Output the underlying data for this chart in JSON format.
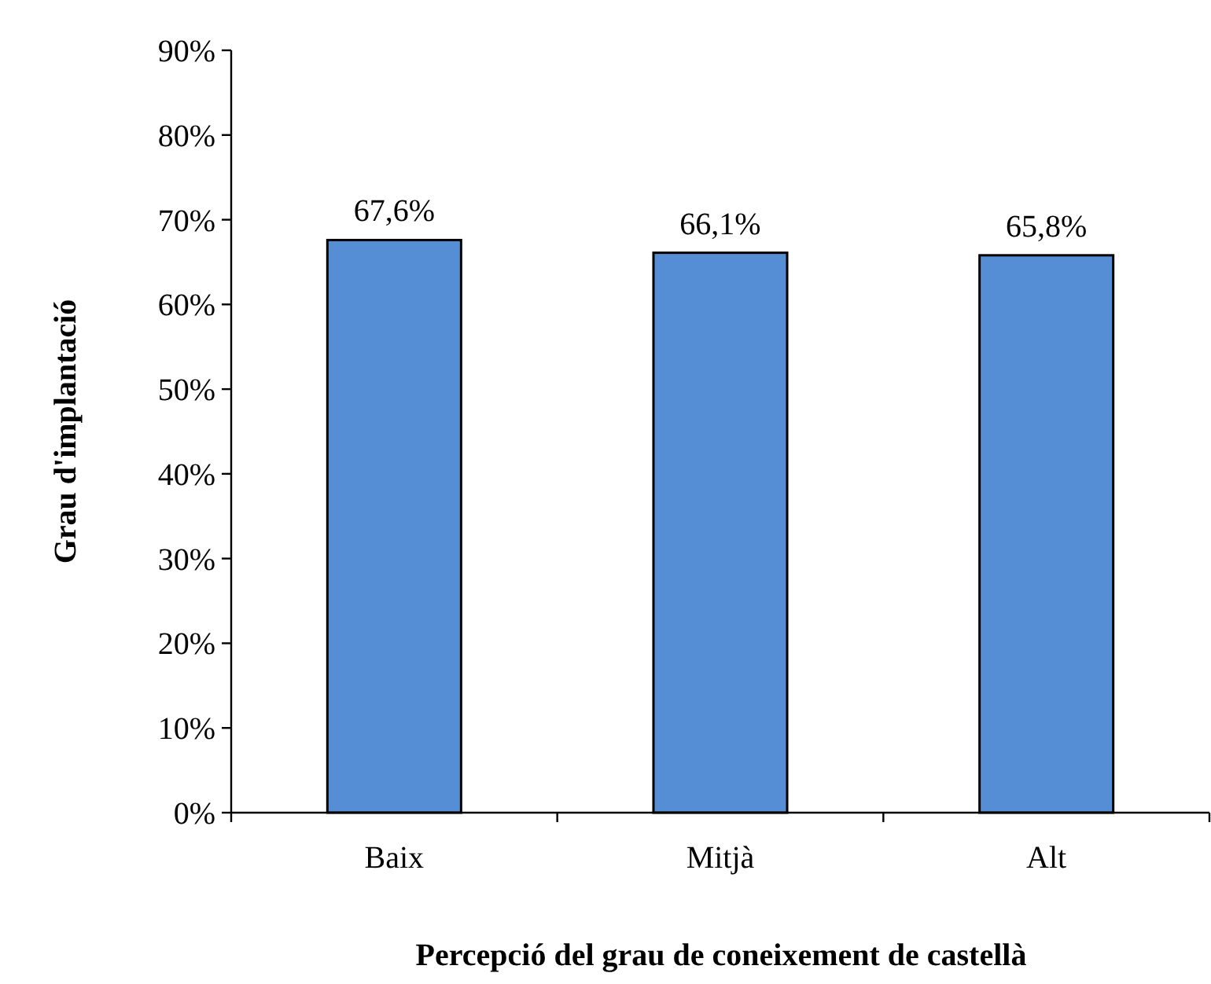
{
  "chart_data": {
    "type": "bar",
    "xlabel": "Percepció del grau de coneixement de castellà",
    "ylabel": "Grau d'implantació",
    "categories": [
      "Baix",
      "Mitjà",
      "Alt"
    ],
    "values": [
      67.6,
      66.1,
      65.8
    ],
    "color": "#558ed5",
    "value_labels": [
      "67,6%",
      "66,1%",
      "65,8%"
    ],
    "ylim": [
      0,
      90
    ],
    "yticks": [
      {
        "value": 0,
        "label": "0%"
      },
      {
        "value": 10,
        "label": "10%"
      },
      {
        "value": 20,
        "label": "20%"
      },
      {
        "value": 30,
        "label": "30%"
      },
      {
        "value": 40,
        "label": "40%"
      },
      {
        "value": 50,
        "label": "50%"
      },
      {
        "value": 60,
        "label": "60%"
      },
      {
        "value": 70,
        "label": "70%"
      },
      {
        "value": 80,
        "label": "80%"
      },
      {
        "value": 90,
        "label": "90%"
      }
    ],
    "grid": false
  }
}
